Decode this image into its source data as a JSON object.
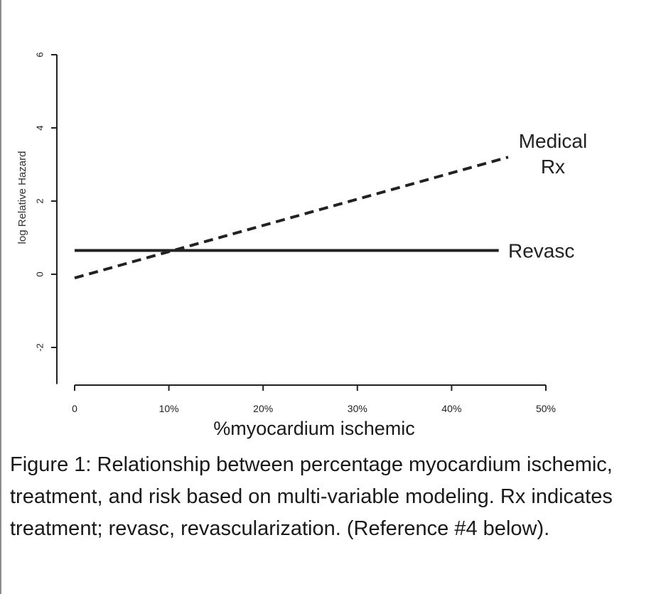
{
  "chart_data": {
    "type": "line",
    "title": "",
    "xlabel": "%myocardium ischemic",
    "ylabel": "log Relative Hazard",
    "x_ticks": [
      {
        "value": 0,
        "label": "0"
      },
      {
        "value": 10,
        "label": "10%"
      },
      {
        "value": 20,
        "label": "20%"
      },
      {
        "value": 30,
        "label": "30%"
      },
      {
        "value": 40,
        "label": "40%"
      },
      {
        "value": 50,
        "label": "50%"
      }
    ],
    "y_ticks": [
      {
        "value": -2,
        "label": "-2"
      },
      {
        "value": 0,
        "label": "0"
      },
      {
        "value": 2,
        "label": "2"
      },
      {
        "value": 4,
        "label": "4"
      },
      {
        "value": 6,
        "label": "6"
      }
    ],
    "xlim": [
      0,
      50
    ],
    "ylim": [
      -3,
      6
    ],
    "series": [
      {
        "name": "Medical Rx",
        "label_lines": [
          "Medical",
          "Rx"
        ],
        "style": "dashed",
        "x": [
          0,
          46
        ],
        "y": [
          -0.1,
          3.2
        ]
      },
      {
        "name": "Revasc",
        "label_lines": [
          "Revasc"
        ],
        "style": "solid",
        "x": [
          0,
          45
        ],
        "y": [
          0.65,
          0.65
        ]
      }
    ]
  },
  "caption": "Figure 1: Relationship between percentage myocardium ischemic, treatment, and risk based on multi-variable modeling. Rx indicates treatment; revasc, revascularization. (Reference #4 below)."
}
